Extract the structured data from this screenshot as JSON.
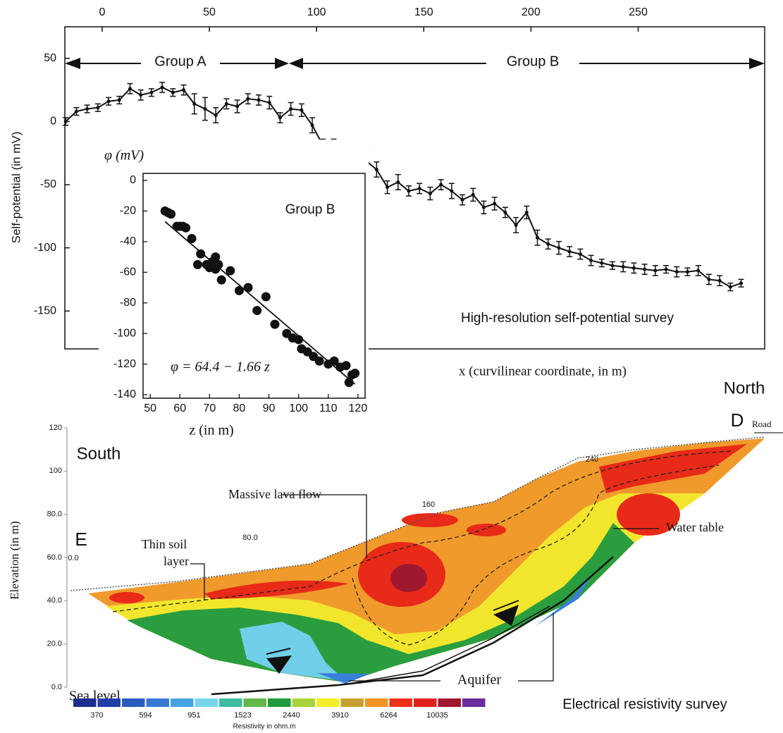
{
  "chart_data": [
    {
      "type": "line",
      "ylabel": "Self-potential (in mV)",
      "xlabel": "x (curvilinear coordinate, in m)",
      "annotations": [
        "Group A",
        "Group B",
        "High-resolution self-potential survey"
      ],
      "x": [
        -17,
        -12,
        -7,
        -2,
        3,
        8,
        13,
        18,
        23,
        28,
        33,
        38,
        43,
        48,
        53,
        58,
        63,
        68,
        73,
        78,
        83,
        88,
        93,
        98,
        103,
        108,
        113,
        118,
        123,
        128,
        133,
        138,
        143,
        148,
        153,
        158,
        163,
        168,
        173,
        178,
        183,
        188,
        193,
        198,
        203,
        208,
        213,
        218,
        223,
        228,
        233,
        238,
        243,
        248,
        253,
        258,
        263,
        268,
        273,
        278,
        283,
        288,
        293,
        298
      ],
      "series": [
        {
          "color": "#111111",
          "values": [
            0,
            8,
            10,
            11,
            16,
            17,
            26,
            21,
            23,
            27,
            23,
            25,
            14,
            10,
            5,
            14,
            12,
            18,
            17,
            15,
            3,
            10,
            9,
            -3,
            -19,
            -22,
            -29,
            -29,
            -31,
            -38,
            -52,
            -48,
            -55,
            -53,
            -57,
            -50,
            -55,
            -62,
            -58,
            -68,
            -65,
            -72,
            -82,
            -72,
            -92,
            -97,
            -100,
            -103,
            -105,
            -110,
            -112,
            -114,
            -115,
            -116,
            -117,
            -118,
            -117,
            -119,
            -119,
            -118,
            -125,
            -126,
            -131,
            -128
          ],
          "errors": [
            3,
            3,
            3,
            3,
            3,
            3,
            4,
            4,
            3,
            4,
            3,
            4,
            8,
            9,
            6,
            4,
            5,
            4,
            4,
            5,
            4,
            5,
            5,
            6,
            5,
            8,
            6,
            4,
            9,
            6,
            5,
            6,
            4,
            4,
            5,
            4,
            6,
            4,
            5,
            5,
            5,
            4,
            6,
            5,
            6,
            4,
            5,
            4,
            4,
            4,
            3,
            3,
            4,
            4,
            4,
            4,
            3,
            4,
            3,
            4,
            4,
            4,
            3,
            3
          ]
        }
      ],
      "xlim": [
        -17.4,
        309
      ],
      "xticks": [
        0,
        50,
        100,
        150,
        200,
        250
      ],
      "ylim": [
        -180,
        75
      ],
      "yticks": [
        -150,
        -100,
        -50,
        0,
        50
      ]
    },
    {
      "type": "scatter",
      "title": "Group B",
      "ylabel": "φ (mV)",
      "xlabel": "z (in m)",
      "annotation": "φ = 64.4 − 1.66  z",
      "fit": {
        "intercept": 64.4,
        "slope": -1.66
      },
      "color": "#111111",
      "x": [
        55,
        56,
        57,
        59,
        60,
        61,
        62,
        64,
        66,
        67,
        69,
        70,
        71,
        72,
        72,
        73,
        74,
        77,
        80,
        83,
        86,
        89,
        92,
        96,
        98,
        100,
        101,
        103,
        105,
        107,
        110,
        112,
        114,
        116,
        117,
        118,
        119
      ],
      "values": [
        -20,
        -21,
        -22,
        -30,
        -30,
        -30,
        -31,
        -38,
        -55,
        -48,
        -55,
        -57,
        -53,
        -50,
        -58,
        -55,
        -65,
        -59,
        -72,
        -70,
        -85,
        -76,
        -94,
        -100,
        -103,
        -104,
        -110,
        -112,
        -115,
        -118,
        -120,
        -118,
        -122,
        -121,
        -132,
        -127,
        -126
      ],
      "xlim": [
        47.6,
        122.4
      ],
      "xticks": [
        50,
        60,
        70,
        80,
        90,
        100,
        110,
        120
      ],
      "ylim": [
        -142.3,
        4.6
      ],
      "yticks": [
        0,
        -20,
        -40,
        -60,
        -80,
        -100,
        -120,
        -140
      ]
    },
    {
      "type": "contour",
      "ylabel": "Elevation (in m)",
      "ylim": [
        0,
        120
      ],
      "yticks": [
        {
          "value": 0,
          "label": "0.0"
        },
        {
          "value": 20,
          "label": "20.0"
        },
        {
          "value": 40,
          "label": "40.0"
        },
        {
          "value": 60,
          "label": "60.0"
        },
        {
          "value": 80,
          "label": "80.0"
        },
        100,
        120
      ],
      "distance_labels": [
        "0.0",
        "80.0",
        "160",
        "240"
      ],
      "colorbar": {
        "colors": [
          "#1a2f8c",
          "#2040a8",
          "#2a5cc0",
          "#3678d4",
          "#48a4e0",
          "#78d4ec",
          "#3cbca0",
          "#62b848",
          "#1f9a3c",
          "#a8d43c",
          "#f4ee28",
          "#c8a030",
          "#f49424",
          "#ec3018",
          "#e0201c",
          "#a01830",
          "#6c2c9c"
        ],
        "ticks": [
          370,
          594,
          951,
          1523,
          2440,
          3910,
          6264,
          10035
        ],
        "label": "Resistivity in ohm.m"
      },
      "annotations": [
        "South",
        "North",
        "E",
        "D",
        "Road",
        "Massive lava flow",
        "Thin soil",
        "layer",
        "Water table",
        "Aquifer",
        "Sea level",
        "Electrical resistivity survey"
      ]
    }
  ]
}
